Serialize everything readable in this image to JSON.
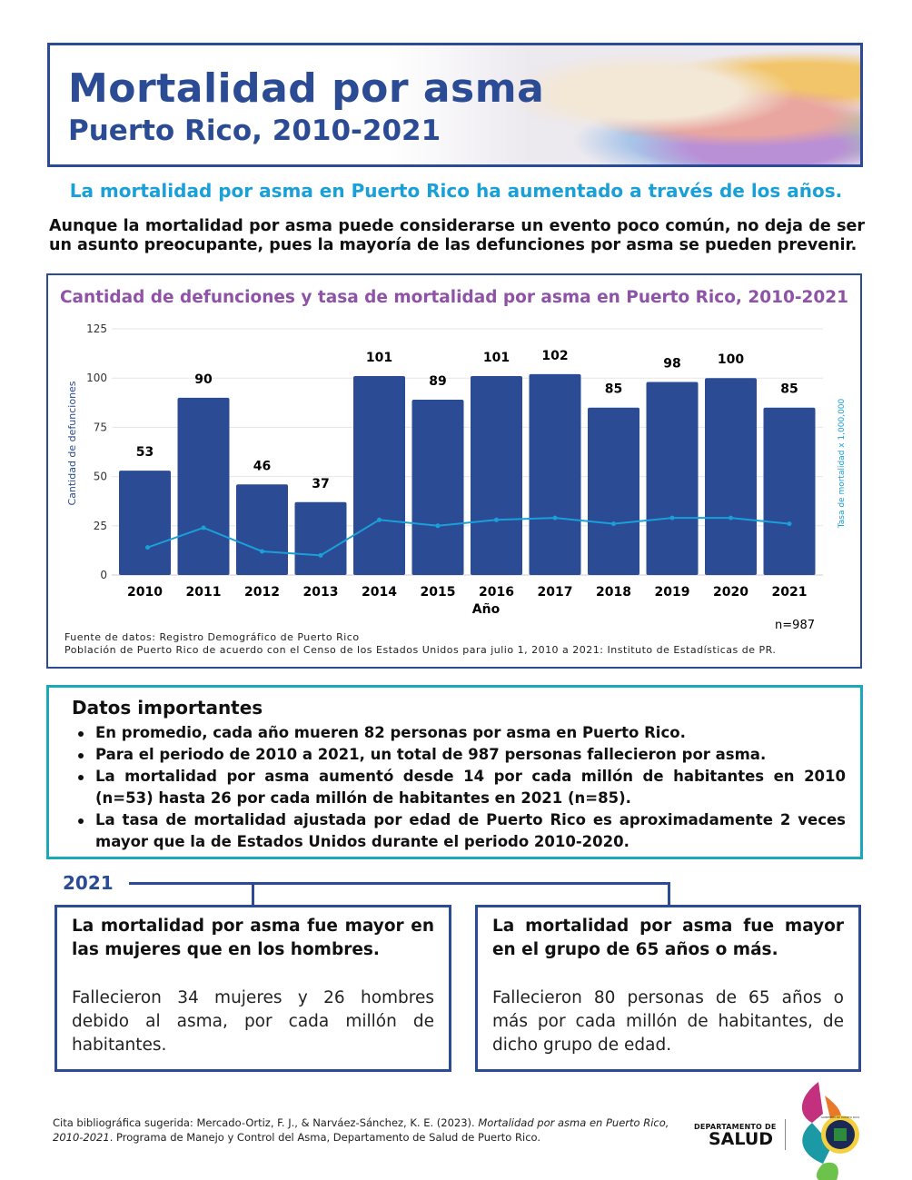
{
  "header": {
    "title": "Mortalidad por asma",
    "subtitle": "Puerto Rico, 2010-2021"
  },
  "headline": "La mortalidad por asma en Puerto Rico ha aumentado a través de los años.",
  "intro": "Aunque la mortalidad por asma puede considerarse un evento poco común, no deja de ser un asunto preocupante, pues la mayoría de las defunciones por asma se pueden prevenir.",
  "chart_data": {
    "type": "bar",
    "title": "Cantidad de defunciones y tasa de mortalidad por asma en Puerto Rico, 2010-2021",
    "categories": [
      "2010",
      "2011",
      "2012",
      "2013",
      "2014",
      "2015",
      "2016",
      "2017",
      "2018",
      "2019",
      "2020",
      "2021"
    ],
    "series": [
      {
        "name": "Cantidad de defunciones",
        "type": "bar",
        "color": "#2b4b95",
        "values": [
          53,
          90,
          46,
          37,
          101,
          89,
          101,
          102,
          85,
          98,
          100,
          85
        ]
      },
      {
        "name": "Tasa de mortalidad x 1,000,000",
        "type": "line",
        "color": "#1aa0d8",
        "values": [
          14,
          24,
          12,
          10,
          28,
          25,
          28,
          29,
          26,
          29,
          29,
          26
        ]
      }
    ],
    "xlabel": "Año",
    "ylabel": "Cantidad de defunciones",
    "y2label": "Tasa de mortalidad x 1,000,000",
    "ylim": [
      0,
      125
    ],
    "yticks": [
      "0",
      "25",
      "50",
      "75",
      "100",
      "125"
    ],
    "grid": true,
    "note": "n=987"
  },
  "sources": [
    "Fuente de datos: Registro Demográfico de Puerto Rico",
    "Población de Puerto Rico de acuerdo con el Censo de los Estados Unidos para julio 1, 2010 a 2021: Instituto de Estadísticas de PR."
  ],
  "datos": {
    "title": "Datos importantes",
    "items": [
      [
        "En promedio, cada año mueren ",
        "82",
        " personas por asma en Puerto Rico."
      ],
      [
        "Para el periodo de 2010 a 2021, un total de ",
        "987",
        " personas fallecieron por asma."
      ],
      [
        "La mortalidad por asma aumentó desde 14 por cada millón de habitantes en 2010 (n=53) hasta ",
        "26 por cada millón de habitantes en 2021",
        " (n=85)."
      ],
      [
        "La tasa de mortalidad ajustada por edad de Puerto Rico es aproximadamente 2 veces mayor que la de Estados Unidos durante el periodo 2010-2020.",
        "",
        ""
      ]
    ]
  },
  "year_label": "2021",
  "boxes": [
    {
      "title": "La mortalidad por asma fue mayor en las mujeres que en los hombres.",
      "body": "Fallecieron 34 mujeres y 26 hombres debido al asma, por cada millón de habitantes."
    },
    {
      "title": "La mortalidad por asma fue mayor en el grupo de 65 años o más.",
      "body": "Fallecieron 80 personas de 65 años o más por cada millón de habitantes, de dicho grupo de edad."
    }
  ],
  "citation": {
    "pre": "Cita bibliográfica sugerida: Mercado-Ortiz, F. J., & Narváez-Sánchez, K. E. (2023). ",
    "italic": "Mortalidad por asma en Puerto Rico, 2010-2021",
    "post": ". Programa de Manejo y Control del Asma, Departamento de Salud de Puerto Rico."
  },
  "logo": {
    "line1": "DEPARTAMENTO DE",
    "line2": "SALUD",
    "seal": "GOBIERNO DE PUERTO RICO"
  }
}
